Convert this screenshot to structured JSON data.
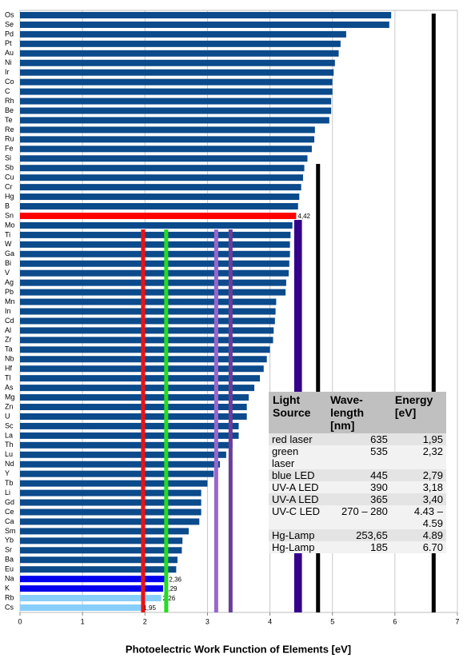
{
  "chart_data": {
    "type": "hbar",
    "x_label": "Photoelectric Work Function of Elements [eV]",
    "categories": [
      "Os",
      "Se",
      "Pd",
      "Pt",
      "Au",
      "Ni",
      "Ir",
      "Co",
      "C",
      "Rh",
      "Be",
      "Te",
      "Re",
      "Ru",
      "Fe",
      "Si",
      "Sb",
      "Cu",
      "Cr",
      "Hg",
      "B",
      "Sn",
      "Mo",
      "Ti",
      "W",
      "Ga",
      "Bi",
      "V",
      "Ag",
      "Pb",
      "Mn",
      "In",
      "Cd",
      "Al",
      "Zr",
      "Ta",
      "Nb",
      "Hf",
      "Tl",
      "As",
      "Mg",
      "Zn",
      "U",
      "Sc",
      "La",
      "Th",
      "Lu",
      "Nd",
      "Y",
      "Tb",
      "Li",
      "Gd",
      "Ce",
      "Ca",
      "Sm",
      "Yb",
      "Sr",
      "Ba",
      "Eu",
      "Na",
      "K",
      "Rb",
      "Cs"
    ],
    "values": [
      5.94,
      5.91,
      5.22,
      5.13,
      5.1,
      5.04,
      5.02,
      5.0,
      5.0,
      4.98,
      4.98,
      4.95,
      4.72,
      4.71,
      4.67,
      4.6,
      4.55,
      4.53,
      4.5,
      4.47,
      4.45,
      4.42,
      4.36,
      4.33,
      4.32,
      4.32,
      4.31,
      4.3,
      4.26,
      4.25,
      4.1,
      4.09,
      4.08,
      4.06,
      4.05,
      4.0,
      3.95,
      3.9,
      3.84,
      3.75,
      3.66,
      3.63,
      3.63,
      3.5,
      3.5,
      3.4,
      3.3,
      3.2,
      3.1,
      3.0,
      2.9,
      2.9,
      2.9,
      2.87,
      2.7,
      2.6,
      2.59,
      2.52,
      2.5,
      2.36,
      2.29,
      2.26,
      1.95
    ],
    "value_labels": [
      null,
      null,
      null,
      null,
      null,
      null,
      null,
      null,
      null,
      null,
      null,
      null,
      null,
      null,
      null,
      null,
      null,
      null,
      null,
      null,
      null,
      "4,42",
      null,
      null,
      null,
      null,
      null,
      null,
      null,
      null,
      null,
      null,
      null,
      null,
      null,
      null,
      null,
      null,
      null,
      null,
      null,
      null,
      null,
      null,
      null,
      null,
      null,
      null,
      null,
      null,
      null,
      null,
      null,
      null,
      null,
      null,
      null,
      null,
      null,
      "2,36",
      "2,29",
      "2,26",
      "1,95"
    ],
    "colors": [
      "#0b4a8b",
      "#0b4a8b",
      "#0b4a8b",
      "#0b4a8b",
      "#0b4a8b",
      "#0b4a8b",
      "#0b4a8b",
      "#0b4a8b",
      "#0b4a8b",
      "#0b4a8b",
      "#0b4a8b",
      "#0b4a8b",
      "#0b4a8b",
      "#0b4a8b",
      "#0b4a8b",
      "#0b4a8b",
      "#0b4a8b",
      "#0b4a8b",
      "#0b4a8b",
      "#0b4a8b",
      "#0b4a8b",
      "#ff0000",
      "#0b4a8b",
      "#0b4a8b",
      "#0b4a8b",
      "#0b4a8b",
      "#0b4a8b",
      "#0b4a8b",
      "#0b4a8b",
      "#0b4a8b",
      "#0b4a8b",
      "#0b4a8b",
      "#0b4a8b",
      "#0b4a8b",
      "#0b4a8b",
      "#0b4a8b",
      "#0b4a8b",
      "#0b4a8b",
      "#0b4a8b",
      "#0b4a8b",
      "#0b4a8b",
      "#0b4a8b",
      "#0b4a8b",
      "#0b4a8b",
      "#0b4a8b",
      "#0b4a8b",
      "#0b4a8b",
      "#0b4a8b",
      "#0b4a8b",
      "#0b4a8b",
      "#0b4a8b",
      "#0b4a8b",
      "#0b4a8b",
      "#0b4a8b",
      "#0b4a8b",
      "#0b4a8b",
      "#0b4a8b",
      "#0b4a8b",
      "#0b4a8b",
      "#0000ee",
      "#0000ee",
      "#87cefa",
      "#87cefa"
    ],
    "xlim": [
      0,
      7
    ],
    "xticks": [
      0,
      1,
      2,
      3,
      4,
      5,
      6,
      7
    ],
    "grid": true,
    "reference_lines": [
      {
        "value": 1.97,
        "color": "#ee1111"
      },
      {
        "value": 2.34,
        "color": "#22dd22"
      },
      {
        "value": 3.14,
        "color": "#9966cc"
      },
      {
        "value": 3.37,
        "color": "#6a3d9a"
      },
      {
        "value": 4.42,
        "color": "#33008a"
      },
      {
        "value": 4.48,
        "color": "#33008a"
      },
      {
        "value": 4.77,
        "color": "#000000"
      },
      {
        "value": 6.62,
        "color": "#000000"
      }
    ]
  },
  "table": {
    "header": [
      "Light Source",
      "Wave-length [nm]",
      "Energy [eV]"
    ],
    "rows": [
      [
        "red laser",
        "635",
        "1,95"
      ],
      [
        "green laser",
        "535",
        "2,32"
      ],
      [
        "blue LED",
        "445",
        "2,79"
      ],
      [
        "UV-A LED",
        "390",
        "3,18"
      ],
      [
        "UV-A LED",
        "365",
        "3,40"
      ],
      [
        "UV-C LED",
        "270 – 280",
        "4.43 – 4.59"
      ],
      [
        "Hg-Lamp",
        "253,65",
        "4.89"
      ],
      [
        "Hg-Lamp",
        "185",
        "6.70"
      ]
    ]
  }
}
